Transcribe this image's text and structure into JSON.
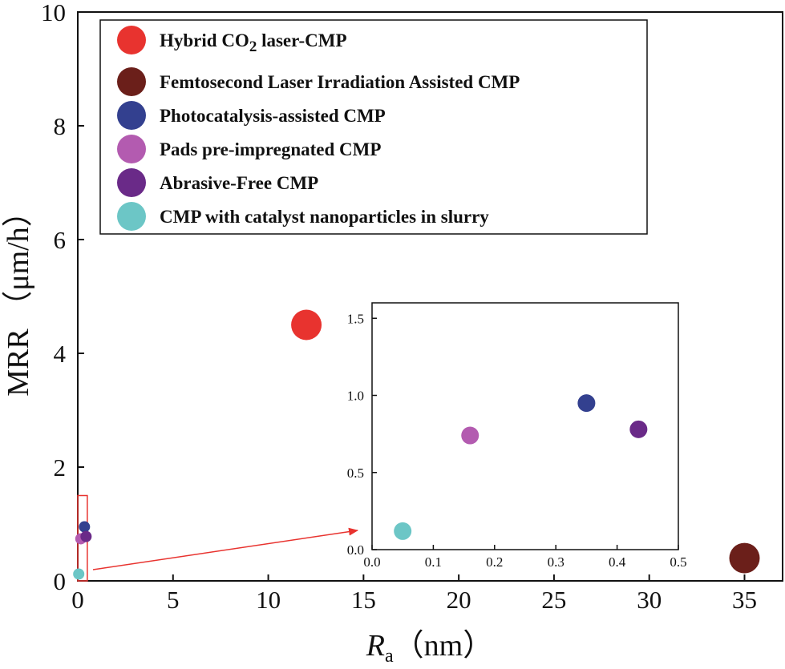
{
  "chart_data": [
    {
      "type": "scatter",
      "title": "",
      "xlabel": "R_a (nm)",
      "xlabel_main": "R",
      "xlabel_sub": "a",
      "xlabel_unit": "（nm）",
      "ylabel": "MRR （μm/h）",
      "xlim": [
        0,
        37
      ],
      "ylim": [
        0,
        10
      ],
      "xticks": [
        0,
        5,
        10,
        15,
        20,
        25,
        30,
        35
      ],
      "yticks": [
        0,
        2,
        4,
        6,
        8,
        10
      ],
      "grid": false,
      "legend_position": "top-left",
      "series": [
        {
          "name": "Hybrid CO2 laser-CMP",
          "legend_prefix": "Hybrid CO",
          "legend_sub": "2",
          "legend_suffix": " laser-CMP",
          "color": "#e8332f",
          "points": [
            {
              "x": 12,
              "y": 4.5
            }
          ]
        },
        {
          "name": "Femtosecond Laser Irradiation Assisted CMP",
          "color": "#6b1f1a",
          "points": [
            {
              "x": 35,
              "y": 0.4
            }
          ]
        },
        {
          "name": "Photocatalysis-assisted CMP",
          "color": "#33408f",
          "points": [
            {
              "x": 0.35,
              "y": 0.95
            }
          ]
        },
        {
          "name": "Pads pre-impregnated CMP",
          "color": "#b35bb0",
          "points": [
            {
              "x": 0.16,
              "y": 0.74
            }
          ]
        },
        {
          "name": "Abrasive-Free CMP",
          "color": "#6a2a88",
          "points": [
            {
              "x": 0.435,
              "y": 0.78
            }
          ]
        },
        {
          "name": "CMP with catalyst nanoparticles in slurry",
          "color": "#6cc6c6",
          "points": [
            {
              "x": 0.05,
              "y": 0.12
            }
          ]
        }
      ],
      "zoom_box": {
        "xrange": [
          0,
          0.5
        ],
        "yrange": [
          0,
          1.5
        ],
        "color": "#e8332f"
      }
    },
    {
      "type": "scatter",
      "role": "inset",
      "title": "",
      "xlabel": "",
      "ylabel": "",
      "xlim": [
        0,
        0.5
      ],
      "ylim": [
        0,
        1.6
      ],
      "xticks": [
        "0.0",
        "0.1",
        "0.2",
        "0.3",
        "0.4",
        "0.5"
      ],
      "yticks": [
        "0.0",
        "0.5",
        "1.0",
        "1.5"
      ],
      "points": [
        {
          "x": 0.05,
          "y": 0.12,
          "color": "#6cc6c6"
        },
        {
          "x": 0.16,
          "y": 0.74,
          "color": "#b35bb0"
        },
        {
          "x": 0.35,
          "y": 0.95,
          "color": "#33408f"
        },
        {
          "x": 0.435,
          "y": 0.78,
          "color": "#6a2a88"
        }
      ]
    }
  ]
}
